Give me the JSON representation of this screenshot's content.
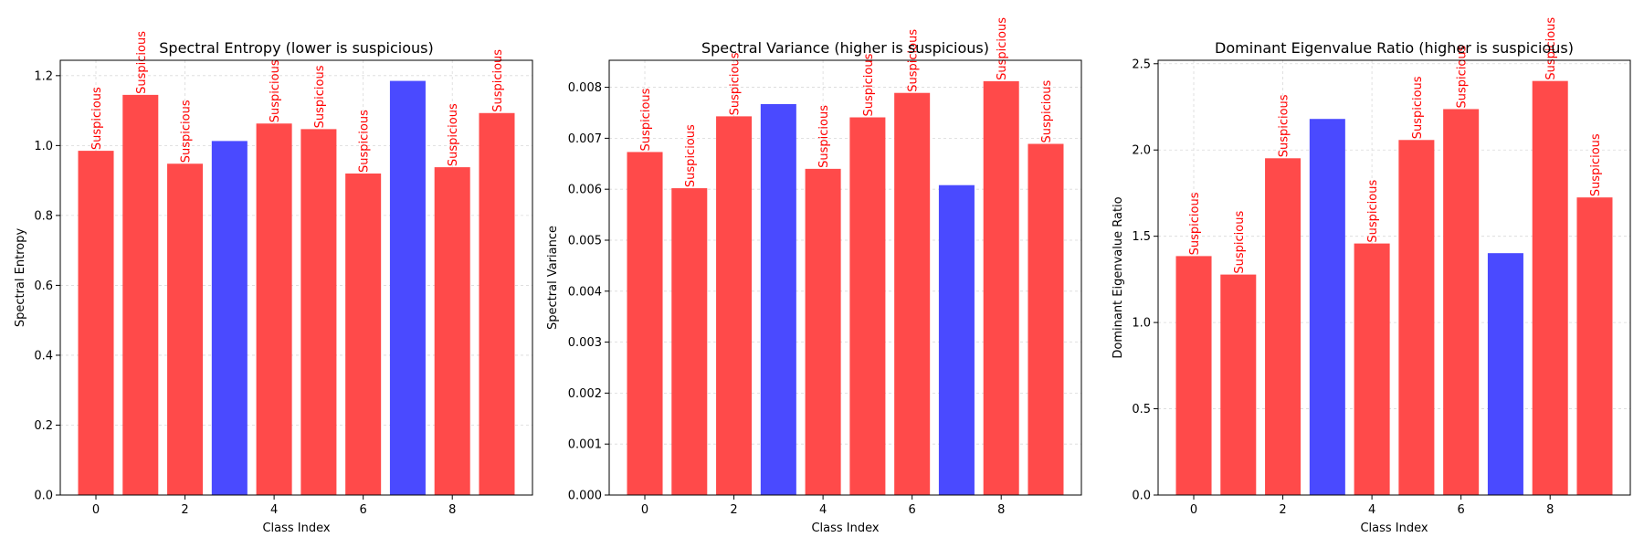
{
  "chart_data": [
    {
      "type": "bar",
      "title": "Spectral Entropy (lower is suspicious)",
      "xlabel": "Class Index",
      "ylabel": "Spectral Entropy",
      "categories": [
        0,
        1,
        2,
        3,
        4,
        5,
        6,
        7,
        8,
        9
      ],
      "values": [
        0.985,
        1.145,
        0.948,
        1.013,
        1.063,
        1.047,
        0.92,
        1.185,
        0.938,
        1.093
      ],
      "flags": [
        "Suspicious",
        "Suspicious",
        "Suspicious",
        "",
        "Suspicious",
        "Suspicious",
        "Suspicious",
        "",
        "Suspicious",
        "Suspicious"
      ],
      "xlim": [
        -0.8,
        9.8
      ],
      "ylim": [
        0,
        1.244
      ],
      "xticks": [
        0,
        2,
        4,
        6,
        8
      ],
      "yticks": [
        0.0,
        0.2,
        0.4,
        0.6,
        0.8,
        1.0,
        1.2
      ],
      "ytick_labels": [
        "0.0",
        "0.2",
        "0.4",
        "0.6",
        "0.8",
        "1.0",
        "1.2"
      ],
      "grid": true
    },
    {
      "type": "bar",
      "title": "Spectral Variance (higher is suspicious)",
      "xlabel": "Class Index",
      "ylabel": "Spectral Variance",
      "categories": [
        0,
        1,
        2,
        3,
        4,
        5,
        6,
        7,
        8,
        9
      ],
      "values": [
        0.00673,
        0.00602,
        0.00743,
        0.00767,
        0.0064,
        0.00741,
        0.00789,
        0.00608,
        0.00812,
        0.00689
      ],
      "flags": [
        "Suspicious",
        "Suspicious",
        "Suspicious",
        "",
        "Suspicious",
        "Suspicious",
        "Suspicious",
        "",
        "Suspicious",
        "Suspicious"
      ],
      "xlim": [
        -0.8,
        9.8
      ],
      "ylim": [
        0,
        0.00853
      ],
      "xticks": [
        0,
        2,
        4,
        6,
        8
      ],
      "yticks": [
        0,
        0.001,
        0.002,
        0.003,
        0.004,
        0.005,
        0.006,
        0.007,
        0.008
      ],
      "ytick_labels": [
        "0.000",
        "0.001",
        "0.002",
        "0.003",
        "0.004",
        "0.005",
        "0.006",
        "0.007",
        "0.008"
      ],
      "grid": true
    },
    {
      "type": "bar",
      "title": "Dominant Eigenvalue Ratio (higher is suspicious)",
      "xlabel": "Class Index",
      "ylabel": "Dominant Eigenvalue Ratio",
      "categories": [
        0,
        1,
        2,
        3,
        4,
        5,
        6,
        7,
        8,
        9
      ],
      "values": [
        1.385,
        1.278,
        1.952,
        2.18,
        1.458,
        2.058,
        2.237,
        1.402,
        2.4,
        1.725
      ],
      "flags": [
        "Suspicious",
        "Suspicious",
        "Suspicious",
        "",
        "Suspicious",
        "Suspicious",
        "Suspicious",
        "",
        "Suspicious",
        "Suspicious"
      ],
      "xlim": [
        -0.8,
        9.8
      ],
      "ylim": [
        0,
        2.52
      ],
      "xticks": [
        0,
        2,
        4,
        6,
        8
      ],
      "yticks": [
        0.0,
        0.5,
        1.0,
        1.5,
        2.0,
        2.5
      ],
      "ytick_labels": [
        "0.0",
        "0.5",
        "1.0",
        "1.5",
        "2.0",
        "2.5"
      ],
      "grid": true
    }
  ],
  "colors": {
    "suspicious_bar": "#ff4a4a",
    "normal_bar": "#4a4aff",
    "flag_text": "#ff0000",
    "grid": "#d9d9d9",
    "axis": "#000000"
  }
}
